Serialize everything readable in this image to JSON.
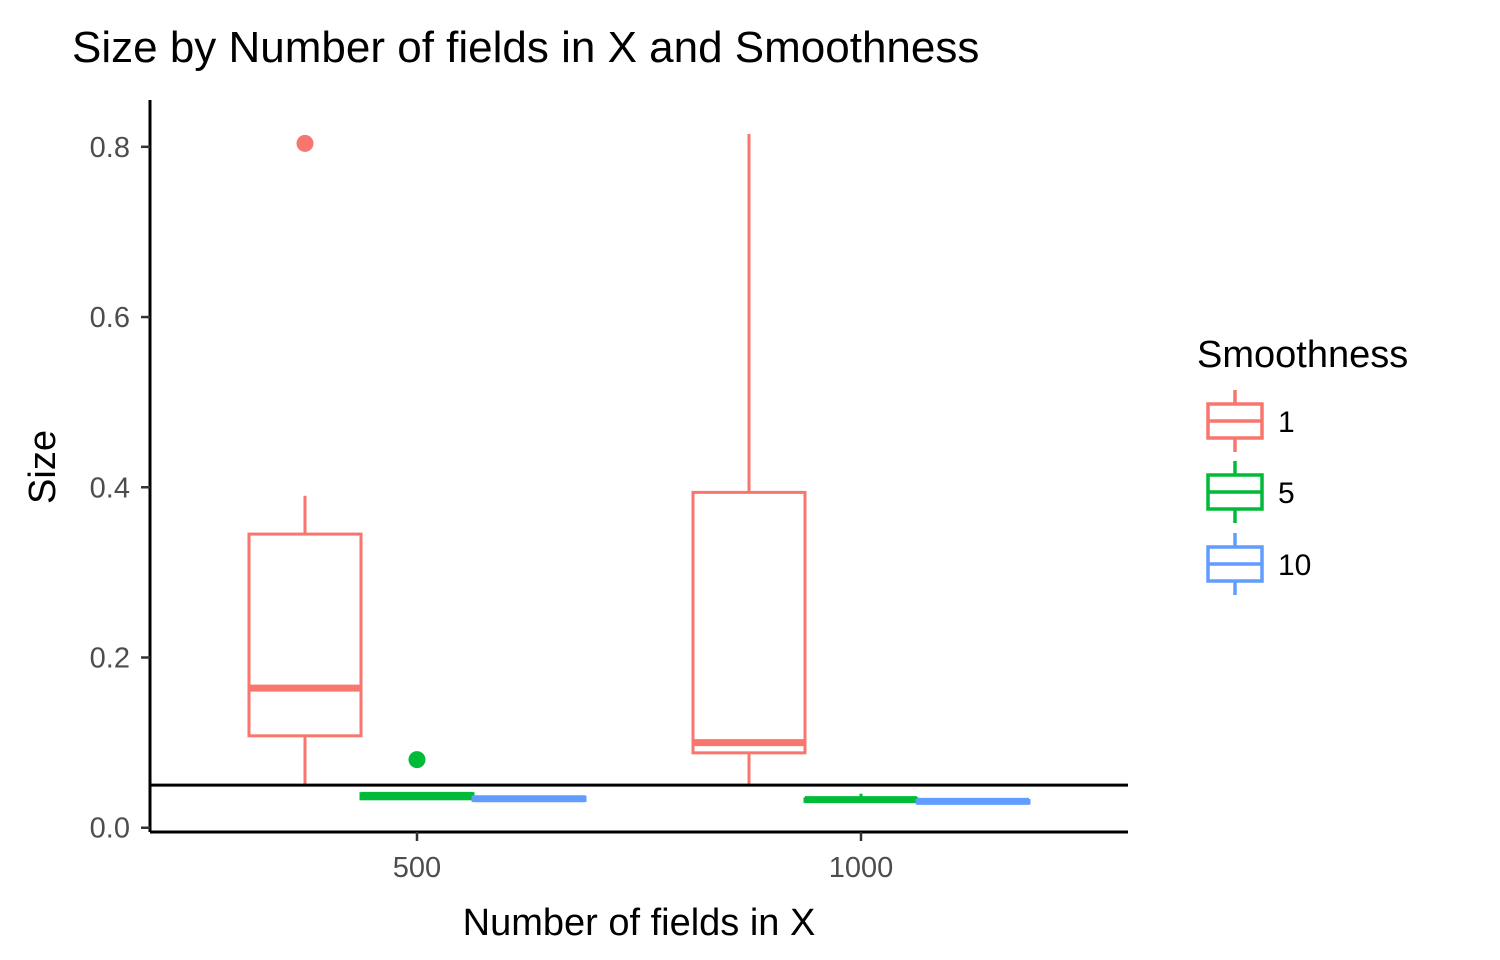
{
  "chart_data": {
    "type": "boxplot",
    "title": "Size by Number of fields in X and Smoothness",
    "xlabel": "Number of fields in X",
    "ylabel": "Size",
    "categories": [
      "500",
      "1000"
    ],
    "ylim": [
      -0.005,
      0.855
    ],
    "yticks": [
      0.0,
      0.2,
      0.4,
      0.6,
      0.8
    ],
    "ytick_labels": [
      "0.0",
      "0.2",
      "0.4",
      "0.6",
      "0.8"
    ],
    "reference_line_y": 0.05,
    "grid": false,
    "legend": {
      "title": "Smoothness",
      "position": "right",
      "entries": [
        "1",
        "5",
        "10"
      ]
    },
    "series": [
      {
        "name": "1",
        "color": "#F8766D",
        "boxes": [
          {
            "category": "500",
            "lower_whisker": 0.05,
            "q1": 0.108,
            "median": 0.164,
            "q3": 0.345,
            "upper_whisker": 0.39,
            "outliers": [
              0.804
            ]
          },
          {
            "category": "1000",
            "lower_whisker": 0.05,
            "q1": 0.088,
            "median": 0.1,
            "q3": 0.394,
            "upper_whisker": 0.815,
            "outliers": []
          }
        ]
      },
      {
        "name": "5",
        "color": "#00BA38",
        "boxes": [
          {
            "category": "500",
            "lower_whisker": 0.034,
            "q1": 0.034,
            "median": 0.038,
            "q3": 0.04,
            "upper_whisker": 0.04,
            "outliers": [
              0.08
            ]
          },
          {
            "category": "1000",
            "lower_whisker": 0.031,
            "q1": 0.031,
            "median": 0.033,
            "q3": 0.034,
            "upper_whisker": 0.04,
            "outliers": []
          }
        ]
      },
      {
        "name": "10",
        "color": "#619CFF",
        "boxes": [
          {
            "category": "500",
            "lower_whisker": 0.032,
            "q1": 0.032,
            "median": 0.034,
            "q3": 0.036,
            "upper_whisker": 0.036,
            "outliers": []
          },
          {
            "category": "1000",
            "lower_whisker": 0.029,
            "q1": 0.029,
            "median": 0.031,
            "q3": 0.032,
            "upper_whisker": 0.032,
            "outliers": []
          }
        ]
      }
    ]
  }
}
